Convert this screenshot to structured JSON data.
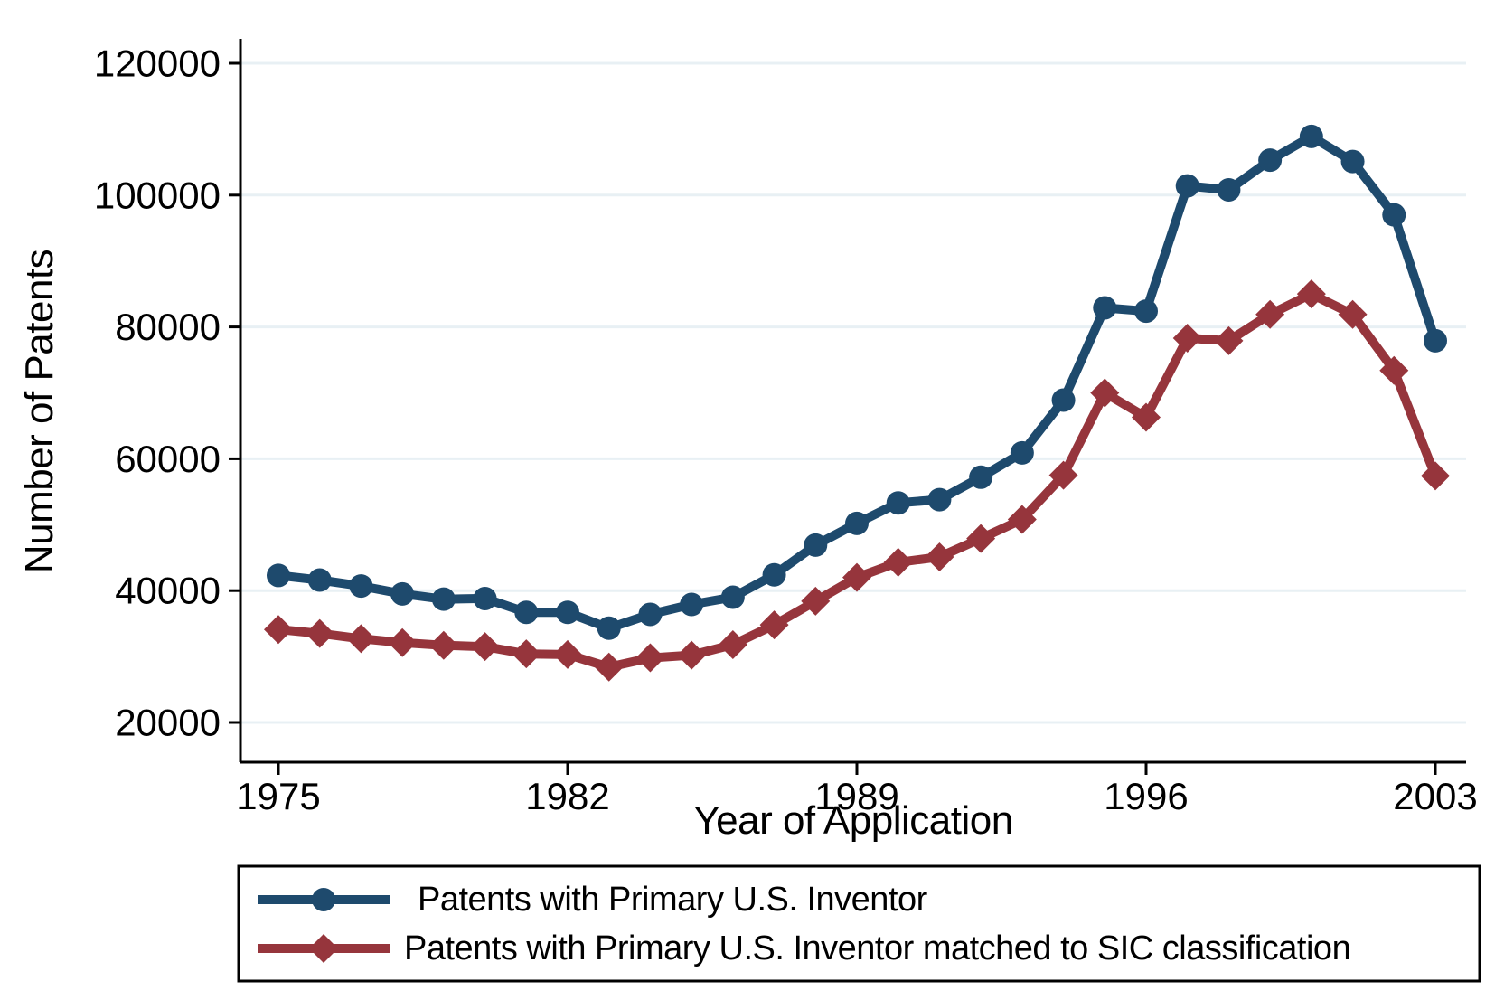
{
  "figure": {
    "background_color": "#ffffff",
    "axis_color": "#000000",
    "gridline_color": "#e8f0f4"
  },
  "chart_data": {
    "type": "line",
    "title": "",
    "xlabel": "Year of Application",
    "ylabel": "Number of Patents",
    "x": [
      1975,
      1976,
      1977,
      1978,
      1979,
      1980,
      1981,
      1982,
      1983,
      1984,
      1985,
      1986,
      1987,
      1988,
      1989,
      1990,
      1991,
      1992,
      1993,
      1994,
      1995,
      1996,
      1997,
      1998,
      1999,
      2000,
      2001,
      2002,
      2003
    ],
    "x_ticks": [
      1975,
      1982,
      1989,
      1996,
      2003
    ],
    "y_ticks": [
      20000,
      40000,
      60000,
      80000,
      100000,
      120000
    ],
    "ylim": [
      14000,
      123700
    ],
    "xlim": [
      1974.1,
      2003.75
    ],
    "grid": true,
    "legend_position": "bottom-box",
    "series": [
      {
        "name": "Patents with Primary U.S. Inventor",
        "color": "#1e4a6d",
        "marker": "circle",
        "values": [
          42300,
          41600,
          40700,
          39500,
          38700,
          38800,
          36700,
          36700,
          34300,
          36400,
          37900,
          39000,
          42400,
          46900,
          50200,
          53300,
          53800,
          57200,
          60900,
          68900,
          82900,
          82400,
          101400,
          100800,
          105300,
          108900,
          105100,
          97000,
          77900
        ]
      },
      {
        "name": "Patents with Primary U.S. Inventor matched to SIC classification",
        "color": "#96353c",
        "marker": "diamond",
        "values": [
          34100,
          33500,
          32700,
          32100,
          31700,
          31500,
          30400,
          30300,
          28400,
          29800,
          30200,
          31800,
          34800,
          38400,
          42000,
          44300,
          45100,
          47900,
          50800,
          57500,
          70000,
          66300,
          78300,
          77900,
          81900,
          85000,
          81900,
          73400,
          57400
        ]
      }
    ]
  }
}
